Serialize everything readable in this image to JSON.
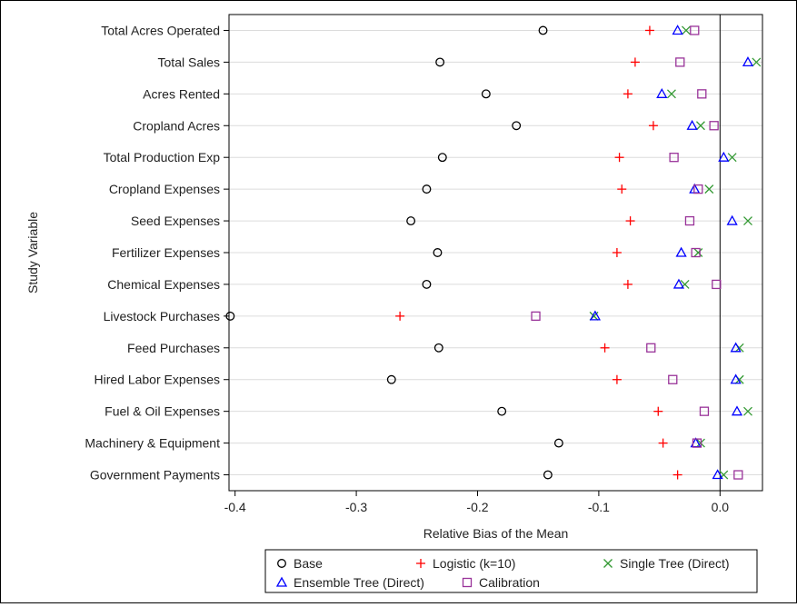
{
  "chart_data": {
    "type": "scatter",
    "xlabel": "Relative Bias of the Mean",
    "ylabel": "Study Variable",
    "xlim": [
      -0.405,
      0.035
    ],
    "xticks": [
      -0.4,
      -0.3,
      -0.2,
      -0.1,
      0.0
    ],
    "xtick_labels": [
      "-0.4",
      "-0.3",
      "-0.2",
      "-0.1",
      "0.0"
    ],
    "reference_line_x": 0.0,
    "grid": "horizontal",
    "legend_position": "bottom",
    "categories": [
      "Total Acres Operated",
      "Total Sales",
      "Acres Rented",
      "Cropland Acres",
      "Total Production Exp",
      "Cropland Expenses",
      "Seed Expenses",
      "Fertilizer Expenses",
      "Chemical Expenses",
      "Livestock Purchases",
      "Feed Purchases",
      "Hired Labor Expenses",
      "Fuel & Oil Expenses",
      "Machinery & Equipment",
      "Government Payments"
    ],
    "series": [
      {
        "name": "Base",
        "marker": "circle",
        "color": "#000000",
        "values": [
          -0.146,
          -0.231,
          -0.193,
          -0.168,
          -0.229,
          -0.242,
          -0.255,
          -0.233,
          -0.242,
          -0.404,
          -0.232,
          -0.271,
          -0.18,
          -0.133,
          -0.142
        ]
      },
      {
        "name": "Logistic (k=10)",
        "marker": "plus",
        "color": "#ff0000",
        "values": [
          -0.058,
          -0.07,
          -0.076,
          -0.055,
          -0.083,
          -0.081,
          -0.074,
          -0.085,
          -0.076,
          -0.264,
          -0.095,
          -0.085,
          -0.051,
          -0.047,
          -0.035
        ]
      },
      {
        "name": "Single Tree (Direct)",
        "marker": "x",
        "color": "#339933",
        "values": [
          -0.028,
          0.03,
          -0.04,
          -0.016,
          0.01,
          -0.009,
          0.023,
          -0.018,
          -0.029,
          -0.104,
          0.016,
          0.016,
          0.023,
          -0.016,
          0.003
        ]
      },
      {
        "name": "Ensemble Tree (Direct)",
        "marker": "triangle",
        "color": "#0000ff",
        "values": [
          -0.035,
          0.023,
          -0.048,
          -0.023,
          0.003,
          -0.021,
          0.01,
          -0.032,
          -0.034,
          -0.103,
          0.013,
          0.013,
          0.014,
          -0.02,
          -0.002
        ]
      },
      {
        "name": "Calibration",
        "marker": "square",
        "color": "#993399",
        "values": [
          -0.021,
          -0.033,
          -0.015,
          -0.005,
          -0.038,
          -0.018,
          -0.025,
          -0.02,
          -0.003,
          -0.152,
          -0.057,
          -0.039,
          -0.013,
          -0.019,
          0.015
        ]
      }
    ]
  }
}
